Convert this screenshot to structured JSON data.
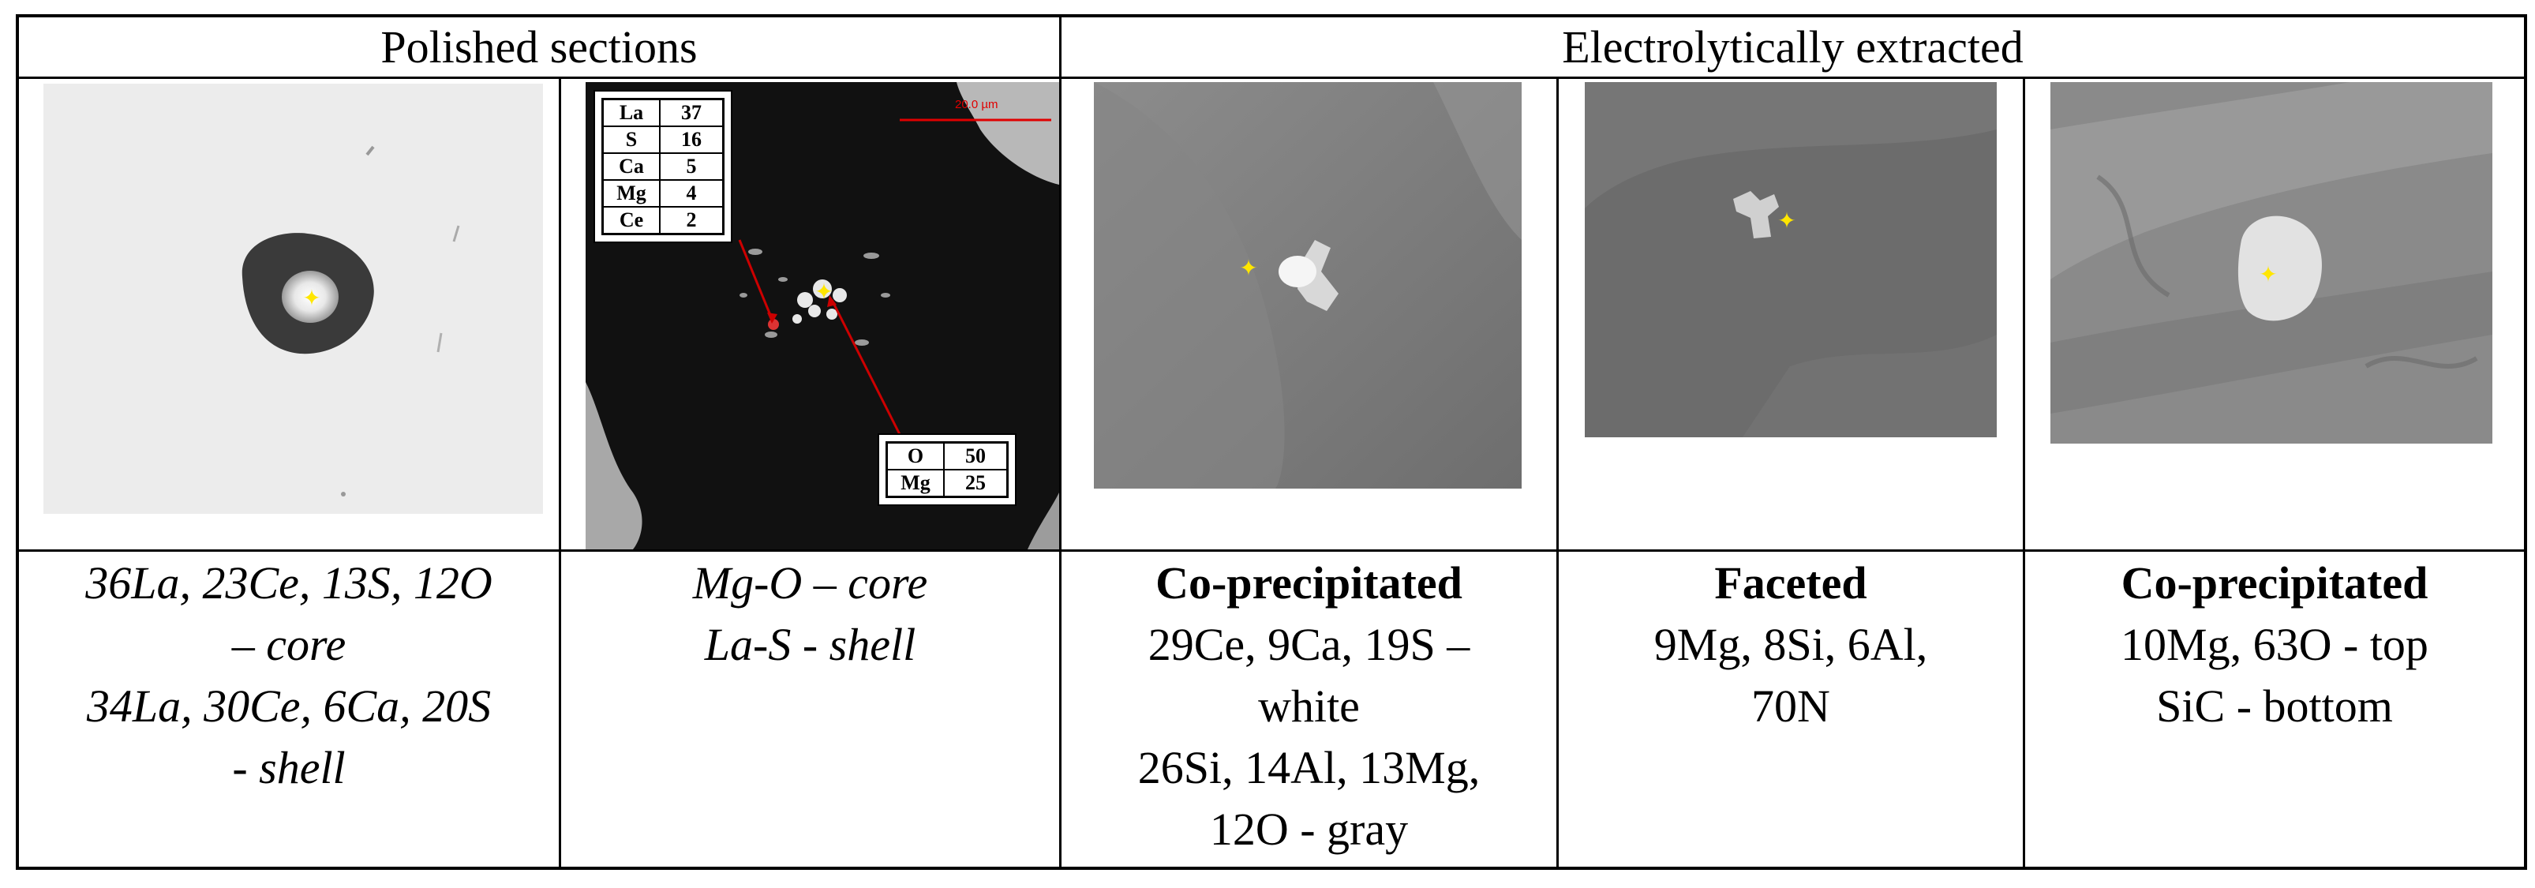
{
  "header": {
    "polished": "Polished sections",
    "extracted": "Electrolytically extracted"
  },
  "panels": {
    "p1": {
      "kind": "sem-polished-inclusion"
    },
    "p2": {
      "scale_bar": "20.0 µm",
      "table_top": [
        {
          "el": "La",
          "val": "37"
        },
        {
          "el": "S",
          "val": "16"
        },
        {
          "el": "Ca",
          "val": "5"
        },
        {
          "el": "Mg",
          "val": "4"
        },
        {
          "el": "Ce",
          "val": "2"
        }
      ],
      "table_bottom": [
        {
          "el": "O",
          "val": "50"
        },
        {
          "el": "Mg",
          "val": "25"
        }
      ]
    }
  },
  "captions": {
    "c1": {
      "l1": "36La, 23Ce, 13S, 12O",
      "l2": "– core",
      "l3": "34La, 30Ce, 6Ca, 20S",
      "l4": "- shell"
    },
    "c2": {
      "l1": "Mg-O – core",
      "l2": "La-S - shell"
    },
    "c3": {
      "title": "Co-precipitated",
      "l1": "29Ce, 9Ca, 19S –",
      "l2": "white",
      "l3": "26Si, 14Al, 13Mg,",
      "l4": "12O - gray"
    },
    "c4": {
      "title": "Faceted",
      "l1": "9Mg, 8Si, 6Al,",
      "l2": "70N"
    },
    "c5": {
      "title": "Co-precipitated",
      "l1": "10Mg, 63O - top",
      "l2": "SiC - bottom"
    }
  },
  "colors": {
    "marker": "#ffe600",
    "arrow": "#cc0000",
    "scale_bar": "#e00000"
  }
}
